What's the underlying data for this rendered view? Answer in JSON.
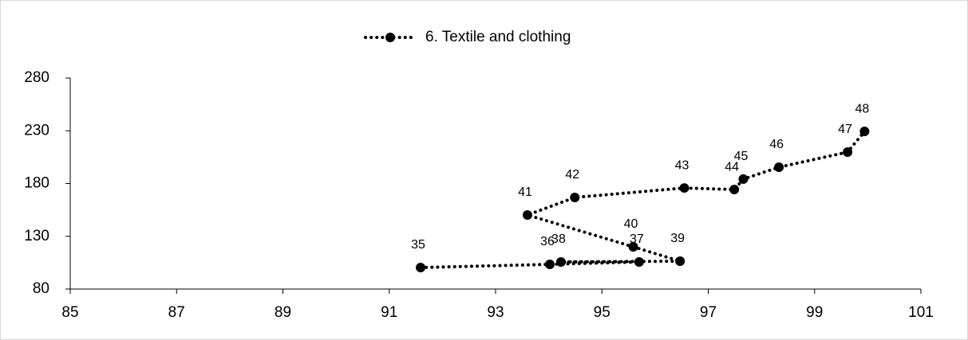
{
  "chart_data": {
    "type": "scatter",
    "series": [
      {
        "name": "6. Textile and clothing",
        "color": "#000000",
        "x": [
          91.59,
          94.02,
          95.7,
          94.23,
          96.47,
          95.59,
          93.6,
          94.49,
          96.55,
          97.49,
          97.66,
          98.33,
          99.62,
          99.94
        ],
        "values": [
          100.4,
          103.4,
          105.7,
          105.7,
          106.4,
          120,
          150.2,
          166.8,
          175.8,
          174.3,
          184.2,
          195.5,
          209.8,
          229.4
        ],
        "point_labels": [
          35,
          36,
          37,
          38,
          39,
          40,
          41,
          42,
          43,
          44,
          45,
          46,
          47,
          48
        ]
      }
    ],
    "xlim": [
      85,
      101
    ],
    "xticks": [
      85,
      87,
      89,
      91,
      93,
      95,
      97,
      99,
      101
    ],
    "ylim": [
      80,
      280
    ],
    "yticks": [
      80,
      130,
      180,
      230,
      280
    ],
    "line_style": "dotted",
    "legend": "top"
  }
}
